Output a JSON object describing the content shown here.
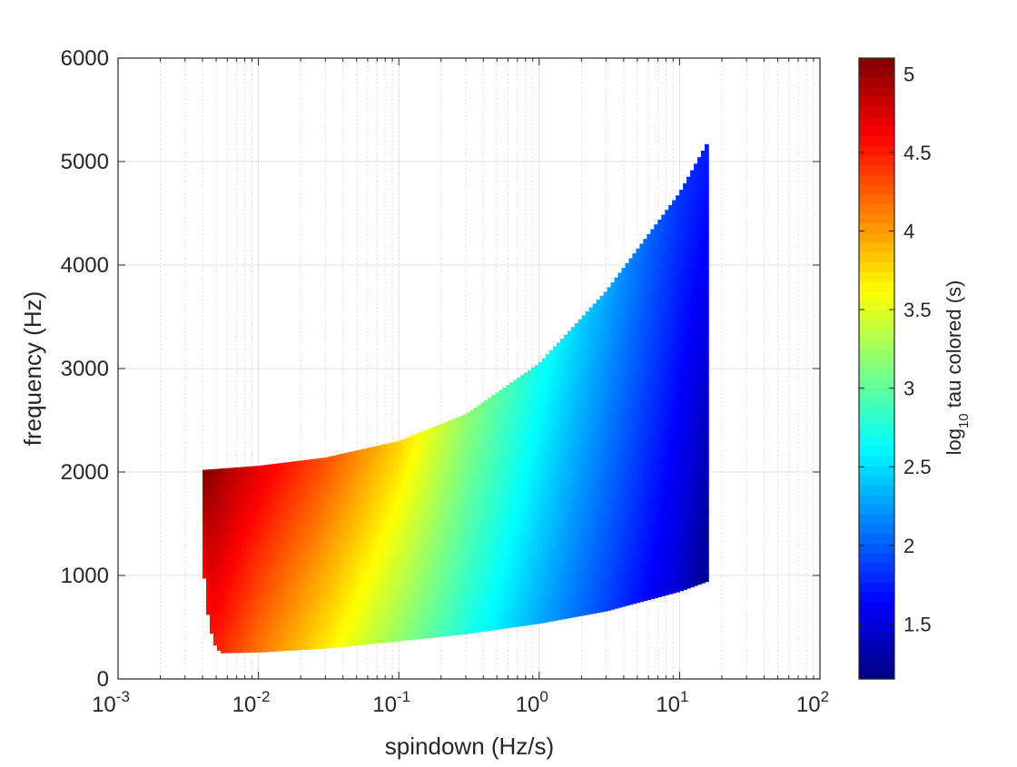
{
  "chart_data": {
    "type": "heatmap",
    "title": "",
    "xlabel": "spindown (Hz/s)",
    "ylabel": "frequency (Hz)",
    "x_scale": "log",
    "xlim": [
      0.001,
      100
    ],
    "ylim": [
      0,
      6000
    ],
    "x_ticks": [
      {
        "value": 0.001,
        "base": "10",
        "exp": "-3"
      },
      {
        "value": 0.01,
        "base": "10",
        "exp": "-2"
      },
      {
        "value": 0.1,
        "base": "10",
        "exp": "-1"
      },
      {
        "value": 1,
        "base": "10",
        "exp": "0"
      },
      {
        "value": 10,
        "base": "10",
        "exp": "1"
      },
      {
        "value": 100,
        "base": "10",
        "exp": "2"
      }
    ],
    "y_ticks": [
      {
        "value": 0,
        "label": "0"
      },
      {
        "value": 1000,
        "label": "1000"
      },
      {
        "value": 2000,
        "label": "2000"
      },
      {
        "value": 3000,
        "label": "3000"
      },
      {
        "value": 4000,
        "label": "4000"
      },
      {
        "value": 5000,
        "label": "5000"
      },
      {
        "value": 6000,
        "label": "6000"
      }
    ],
    "grid": true,
    "colormap": "jet",
    "colorbar": {
      "label_prefix": "log",
      "label_subscript": "10",
      "label_suffix": " tau colored (s)",
      "range": [
        1.15,
        5.1
      ],
      "ticks": [
        {
          "value": 1.5,
          "label": "1.5"
        },
        {
          "value": 2,
          "label": "2"
        },
        {
          "value": 2.5,
          "label": "2.5"
        },
        {
          "value": 3,
          "label": "3"
        },
        {
          "value": 3.5,
          "label": "3.5"
        },
        {
          "value": 4,
          "label": "4"
        },
        {
          "value": 4.5,
          "label": "4.5"
        },
        {
          "value": 5,
          "label": "5"
        }
      ]
    },
    "region": {
      "upper_boundary": [
        {
          "x": 0.004,
          "y": 2020
        },
        {
          "x": 0.01,
          "y": 2060
        },
        {
          "x": 0.03,
          "y": 2140
        },
        {
          "x": 0.1,
          "y": 2300
        },
        {
          "x": 0.3,
          "y": 2560
        },
        {
          "x": 1,
          "y": 3050
        },
        {
          "x": 3,
          "y": 3750
        },
        {
          "x": 10,
          "y": 4700
        },
        {
          "x": 16,
          "y": 5200
        }
      ],
      "lower_boundary": [
        {
          "x": 0.004,
          "y": 1250
        },
        {
          "x": 0.0042,
          "y": 800
        },
        {
          "x": 0.0045,
          "y": 500
        },
        {
          "x": 0.005,
          "y": 300
        },
        {
          "x": 0.0055,
          "y": 255
        },
        {
          "x": 0.01,
          "y": 262
        },
        {
          "x": 0.03,
          "y": 300
        },
        {
          "x": 0.1,
          "y": 370
        },
        {
          "x": 0.3,
          "y": 440
        },
        {
          "x": 1,
          "y": 540
        },
        {
          "x": 3,
          "y": 660
        },
        {
          "x": 10,
          "y": 850
        },
        {
          "x": 16,
          "y": 950
        }
      ],
      "color_field": {
        "x_samples": [
          0.004,
          0.006,
          0.01,
          0.03,
          0.1,
          0.3,
          1,
          3,
          10,
          16
        ],
        "value_at_top": [
          5.1,
          4.9,
          4.7,
          4.3,
          3.8,
          3.2,
          2.7,
          2.3,
          1.85,
          1.75
        ],
        "value_at_bottom": [
          4.6,
          4.4,
          4.15,
          3.7,
          3.2,
          2.75,
          2.3,
          1.9,
          1.45,
          1.2
        ]
      }
    }
  }
}
